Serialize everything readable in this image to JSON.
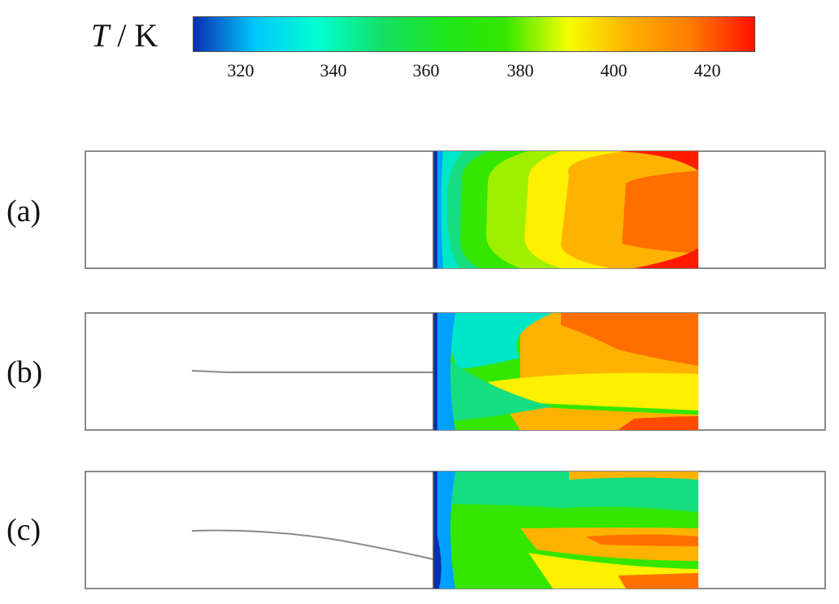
{
  "colorbar": {
    "symbol": "T",
    "separator": " / ",
    "unit": "K",
    "ticks": [
      "320",
      "340",
      "360",
      "380",
      "400",
      "420"
    ],
    "colors": [
      "#0a2fb0",
      "#00c8ff",
      "#00ffd0",
      "#14e06a",
      "#1ee81e",
      "#34e600",
      "#f2ff00",
      "#ffb000",
      "#ff7a00",
      "#ff1000"
    ]
  },
  "panels": [
    {
      "label": "(a)",
      "pipe": "none"
    },
    {
      "label": "(b)",
      "pipe": "straight"
    },
    {
      "label": "(c)",
      "pipe": "curved"
    }
  ]
}
